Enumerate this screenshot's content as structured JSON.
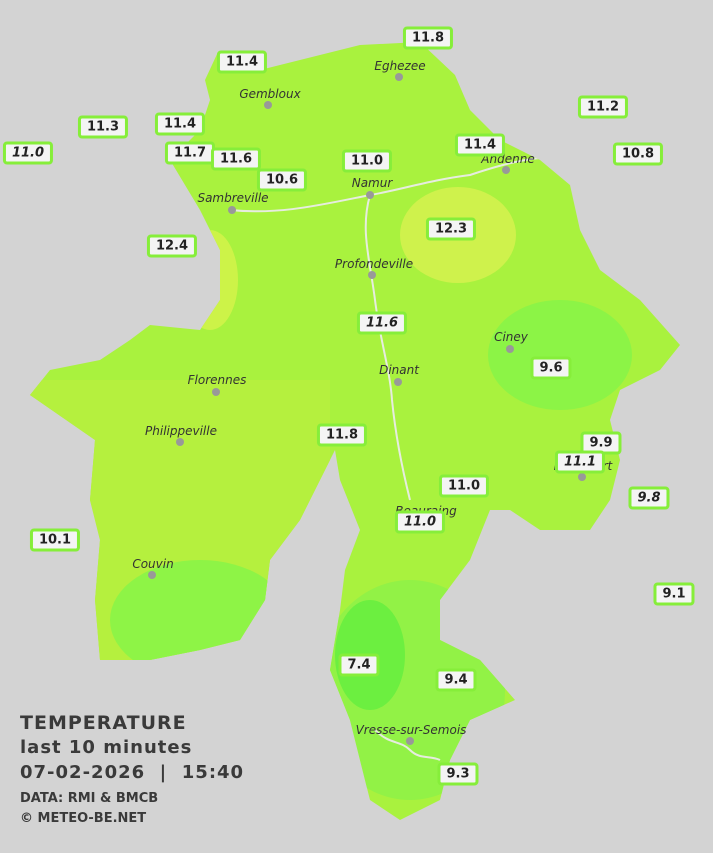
{
  "title": "TEMPERATURE",
  "subtitle": "last 10 minutes",
  "datetime": "07-02-2026  |  15:40",
  "data_source": "DATA: RMI & BMCB",
  "copyright": "© METEO-BE.NET",
  "cities": [
    "Eghezee",
    "Gembloux",
    "Andenne",
    "Namur",
    "Sambreville",
    "Profondeville",
    "Ciney",
    "Dinant",
    "Florennes",
    "Philippeville",
    "Rochefort",
    "Beauraing",
    "Couvin",
    "Vresse-sur-Semois"
  ],
  "stations": [
    {
      "label": "11.8",
      "italic": false
    },
    {
      "label": "11.4",
      "italic": false
    },
    {
      "label": "11.2",
      "italic": false
    },
    {
      "label": "11.3",
      "italic": false
    },
    {
      "label": "11.4",
      "italic": false
    },
    {
      "label": "11.0",
      "italic": true
    },
    {
      "label": "11.7",
      "italic": false
    },
    {
      "label": "11.6",
      "italic": false
    },
    {
      "label": "11.4",
      "italic": false
    },
    {
      "label": "10.8",
      "italic": false
    },
    {
      "label": "11.0",
      "italic": false
    },
    {
      "label": "10.6",
      "italic": false
    },
    {
      "label": "12.3",
      "italic": false
    },
    {
      "label": "12.4",
      "italic": false
    },
    {
      "label": "11.6",
      "italic": true
    },
    {
      "label": "9.6",
      "italic": false
    },
    {
      "label": "11.8",
      "italic": false
    },
    {
      "label": "9.9",
      "italic": false
    },
    {
      "label": "11.1",
      "italic": true
    },
    {
      "label": "9.8",
      "italic": true
    },
    {
      "label": "11.0",
      "italic": false
    },
    {
      "label": "11.0",
      "italic": true
    },
    {
      "label": "10.1",
      "italic": false
    },
    {
      "label": "9.1",
      "italic": false
    },
    {
      "label": "7.4",
      "italic": false
    },
    {
      "label": "9.4",
      "italic": false
    },
    {
      "label": "9.3",
      "italic": false
    }
  ]
}
